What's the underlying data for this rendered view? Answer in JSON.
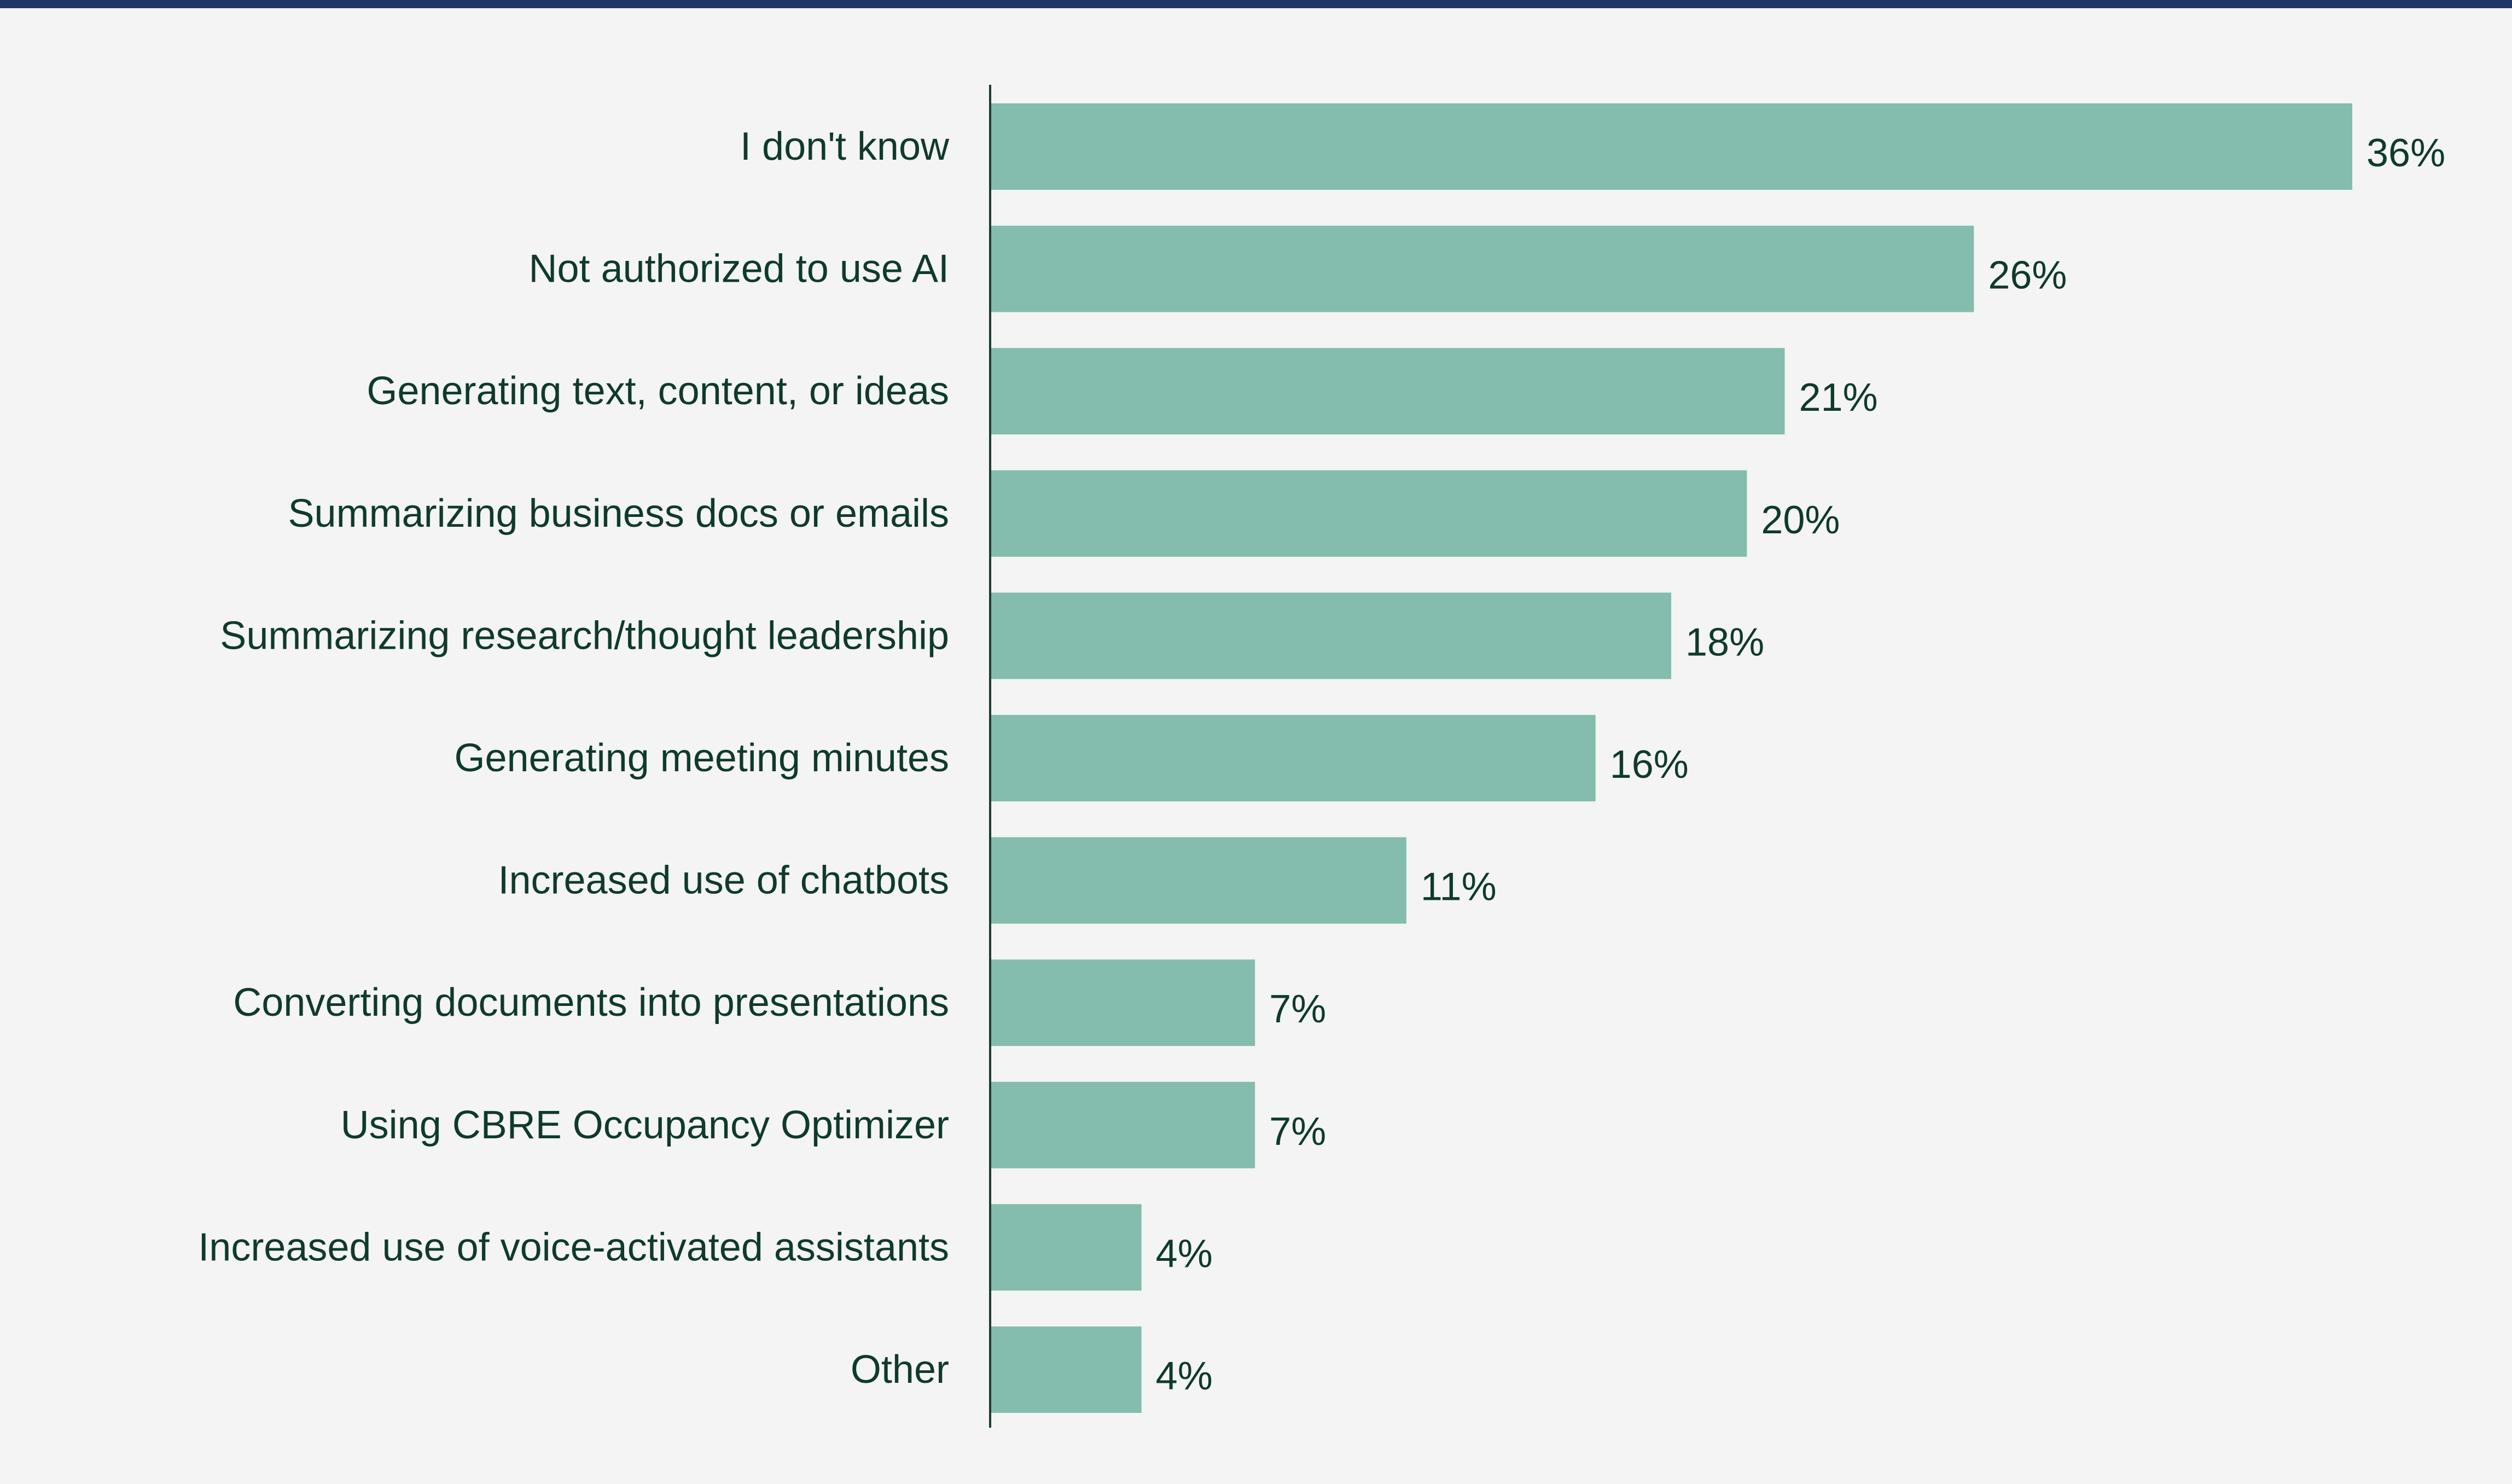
{
  "colors": {
    "background": "#f3f4f3",
    "top_rule": "#1f3866",
    "bar": "#84bcad",
    "axis": "#1d3b33",
    "text": "#0f3a2c"
  },
  "chart_data": {
    "type": "bar",
    "orientation": "horizontal",
    "title": "",
    "xlabel": "",
    "ylabel": "",
    "categories": [
      "I don't know",
      "Not authorized to use AI",
      "Generating text, content, or ideas",
      "Summarizing business docs or emails",
      "Summarizing research/thought leadership",
      "Generating meeting minutes",
      "Increased use of chatbots",
      "Converting documents into presentations",
      "Using CBRE Occupancy Optimizer",
      "Increased use of voice-activated assistants",
      "Other"
    ],
    "values": [
      36,
      26,
      21,
      20,
      18,
      16,
      11,
      7,
      7,
      4,
      4
    ],
    "value_labels": [
      "36%",
      "26%",
      "21%",
      "20%",
      "18%",
      "16%",
      "11%",
      "7%",
      "7%",
      "4%",
      "4%"
    ],
    "xlim": [
      0,
      36
    ],
    "grid": false,
    "legend": "none"
  }
}
